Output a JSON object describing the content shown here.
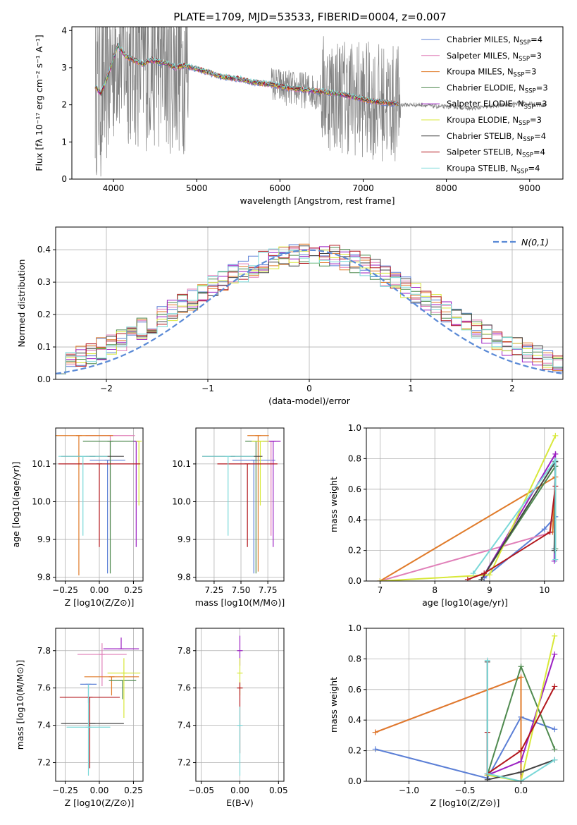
{
  "title": "PLATE=1709, MJD=53533, FIBERID=0004, z=0.007",
  "colors": {
    "Chabrier MILES": "#5b7fd6",
    "Salpeter MILES": "#e07fb8",
    "Kroupa MILES": "#e07b2a",
    "Chabrier ELODIE": "#4f8a4f",
    "Salpeter ELODIE": "#9b1fc2",
    "Kroupa ELODIE": "#d8e83a",
    "Chabrier STELIB": "#444444",
    "Salpeter STELIB": "#b3171d",
    "Kroupa STELIB": "#7ad8d8",
    "data": "#808080",
    "normal": "#5b8ad6"
  },
  "chart_data": [
    {
      "id": "spectrum",
      "type": "line",
      "xlabel": "wavelength [Angstrom, rest frame]",
      "ylabel": "Flux [fλ 10⁻¹⁷ erg cm⁻² s⁻¹ A⁻¹]",
      "xlim": [
        3500,
        9400
      ],
      "ylim": [
        0,
        4.1
      ],
      "xticks": [
        4000,
        5000,
        6000,
        7000,
        8000,
        9000
      ],
      "yticks": [
        0,
        1,
        2,
        3,
        4
      ],
      "legend_position": "top-right",
      "legend": [
        {
          "name": "Chabrier MILES",
          "nssp": "4"
        },
        {
          "name": "Salpeter MILES",
          "nssp": "3"
        },
        {
          "name": "Kroupa MILES",
          "nssp": "3"
        },
        {
          "name": "Chabrier ELODIE",
          "nssp": "3"
        },
        {
          "name": "Salpeter ELODIE",
          "nssp": "3"
        },
        {
          "name": "Kroupa ELODIE",
          "nssp": "3"
        },
        {
          "name": "Chabrier STELIB",
          "nssp": "4"
        },
        {
          "name": "Salpeter STELIB",
          "nssp": "4"
        },
        {
          "name": "Kroupa STELIB",
          "nssp": "4"
        }
      ],
      "nssp_prefix": "N",
      "nssp_sub": "SSP",
      "continuum": {
        "wavelength": [
          3780,
          3850,
          3950,
          4050,
          4150,
          4250,
          4350,
          4450,
          4550,
          4650,
          4750,
          4850,
          4950,
          5100,
          5300,
          5500,
          5700,
          5900,
          6100,
          6300,
          6500,
          6700,
          6900,
          7100,
          7300,
          7500,
          7700,
          7900,
          8100,
          8300,
          8500,
          8700,
          8900,
          9100
        ],
        "flux": [
          2.5,
          2.3,
          2.9,
          3.6,
          3.3,
          3.2,
          3.1,
          3.2,
          3.15,
          3.1,
          3.0,
          3.05,
          3.0,
          2.9,
          2.75,
          2.7,
          2.6,
          2.55,
          2.45,
          2.4,
          2.35,
          2.3,
          2.2,
          2.1,
          2.05,
          2.0,
          2.0,
          1.95,
          1.95,
          1.9,
          1.95,
          2.0,
          2.05,
          2.0
        ]
      },
      "model_range": [
        3780,
        7420
      ],
      "data_range": [
        3780,
        9200
      ]
    },
    {
      "id": "residuals",
      "type": "histogram",
      "xlabel": "(data-model)/error",
      "ylabel": "Normed distribution",
      "xlim": [
        -2.5,
        2.5
      ],
      "ylim": [
        0,
        0.47
      ],
      "xticks": [
        -2,
        -1,
        0,
        1,
        2
      ],
      "yticks": [
        0.0,
        0.1,
        0.2,
        0.3,
        0.4
      ],
      "legend": "N(0,1)",
      "legend_position": "top-right",
      "bin_width": 0.1,
      "base_shape": "gaussian"
    },
    {
      "id": "age-vs-Z",
      "type": "errorbar",
      "xlabel": "Z [log10(Z/Z⊙)]",
      "ylabel": "age  [log10(age/yr)]",
      "xlim": [
        -0.32,
        0.32
      ],
      "ylim": [
        9.79,
        10.195
      ],
      "xticks": [
        -0.25,
        0.0,
        0.25
      ],
      "yticks": [
        9.8,
        9.9,
        10.0,
        10.1
      ],
      "points": [
        {
          "series": "Chabrier MILES",
          "x": 0.06,
          "xerr": 0.13,
          "y": 10.11,
          "yerr": [
            0.3,
            0.0
          ]
        },
        {
          "series": "Salpeter MILES",
          "x": 0.08,
          "xerr": 0.18,
          "y": 10.175,
          "yerr": [
            0.25,
            0.0
          ]
        },
        {
          "series": "Kroupa MILES",
          "x": -0.15,
          "xerr": 0.25,
          "y": 10.175,
          "yerr": [
            0.37,
            0.0
          ]
        },
        {
          "series": "Chabrier ELODIE",
          "x": 0.08,
          "xerr": 0.2,
          "y": 10.16,
          "yerr": [
            0.35,
            0.0
          ]
        },
        {
          "series": "Salpeter ELODIE",
          "x": 0.27,
          "xerr": 0.0,
          "y": 10.16,
          "yerr": [
            0.28,
            0.0
          ]
        },
        {
          "series": "Kroupa ELODIE",
          "x": 0.29,
          "xerr": 0.0,
          "y": 10.16,
          "yerr": [
            0.17,
            0.0
          ]
        },
        {
          "series": "Chabrier STELIB",
          "x": -0.05,
          "xerr": 0.23,
          "y": 10.12,
          "yerr": [
            0.0,
            0.0
          ]
        },
        {
          "series": "Salpeter STELIB",
          "x": 0.0,
          "xerr": 0.3,
          "y": 10.1,
          "yerr": [
            0.22,
            0.0
          ]
        },
        {
          "series": "Kroupa STELIB",
          "x": -0.12,
          "xerr": 0.18,
          "y": 10.12,
          "yerr": [
            0.21,
            0.0
          ]
        }
      ]
    },
    {
      "id": "age-vs-mass",
      "type": "errorbar",
      "xlabel": "mass [log10(M/M⊙)]",
      "ylabel": "",
      "xlim": [
        7.08,
        7.9
      ],
      "ylim": [
        9.79,
        10.195
      ],
      "xticks": [
        7.25,
        7.5,
        7.75
      ],
      "yticks": [
        9.8,
        9.9,
        10.0,
        10.1
      ],
      "points": [
        {
          "series": "Chabrier MILES",
          "x": 7.62,
          "xerr": 0.2,
          "y": 10.11,
          "yerr": [
            0.3,
            0.0
          ]
        },
        {
          "series": "Salpeter MILES",
          "x": 7.78,
          "xerr": 0.08,
          "y": 10.16,
          "yerr": [
            0.25,
            0.0
          ]
        },
        {
          "series": "Kroupa MILES",
          "x": 7.66,
          "xerr": 0.1,
          "y": 10.175,
          "yerr": [
            0.36,
            0.0
          ]
        },
        {
          "series": "Chabrier ELODIE",
          "x": 7.64,
          "xerr": 0.1,
          "y": 10.16,
          "yerr": [
            0.35,
            0.0
          ]
        },
        {
          "series": "Salpeter ELODIE",
          "x": 7.8,
          "xerr": 0.07,
          "y": 10.16,
          "yerr": [
            0.28,
            0.0
          ]
        },
        {
          "series": "Kroupa ELODIE",
          "x": 7.68,
          "xerr": 0.08,
          "y": 10.16,
          "yerr": [
            0.17,
            0.0
          ]
        },
        {
          "series": "Chabrier STELIB",
          "x": 7.42,
          "xerr": 0.28,
          "y": 10.12,
          "yerr": [
            0.0,
            0.0
          ]
        },
        {
          "series": "Salpeter STELIB",
          "x": 7.56,
          "xerr": 0.28,
          "y": 10.1,
          "yerr": [
            0.22,
            0.0
          ]
        },
        {
          "series": "Kroupa STELIB",
          "x": 7.38,
          "xerr": 0.24,
          "y": 10.12,
          "yerr": [
            0.21,
            0.0
          ]
        }
      ]
    },
    {
      "id": "weight-vs-age",
      "type": "line",
      "xlabel": "age  [log10(age/yr)]",
      "ylabel": "mass weight",
      "xlim": [
        6.75,
        10.35
      ],
      "ylim": [
        0,
        1
      ],
      "xticks": [
        7,
        8,
        9,
        10
      ],
      "yticks": [
        0.0,
        0.2,
        0.4,
        0.6,
        0.8,
        1.0
      ],
      "series": [
        {
          "name": "Chabrier MILES",
          "x": [
            8.9,
            10.0,
            10.2,
            10.18
          ],
          "y": [
            0.02,
            0.34,
            0.42,
            0.21
          ]
        },
        {
          "name": "Salpeter MILES",
          "x": [
            7.0,
            10.15,
            10.2
          ],
          "y": [
            0.0,
            0.32,
            0.68
          ]
        },
        {
          "name": "Kroupa MILES",
          "x": [
            7.0,
            10.2,
            10.15
          ],
          "y": [
            0.0,
            0.68,
            0.32
          ]
        },
        {
          "name": "Chabrier ELODIE",
          "x": [
            8.9,
            10.2,
            10.2
          ],
          "y": [
            0.04,
            0.75,
            0.21
          ]
        },
        {
          "name": "Salpeter ELODIE",
          "x": [
            8.9,
            10.2,
            10.18
          ],
          "y": [
            0.04,
            0.83,
            0.13
          ]
        },
        {
          "name": "Kroupa ELODIE",
          "x": [
            7.0,
            9.0,
            10.2
          ],
          "y": [
            0.0,
            0.04,
            0.95
          ]
        },
        {
          "name": "Chabrier STELIB",
          "x": [
            8.85,
            10.2,
            10.18
          ],
          "y": [
            0.01,
            0.78,
            0.2
          ]
        },
        {
          "name": "Salpeter STELIB",
          "x": [
            8.6,
            8.9,
            10.1,
            10.2
          ],
          "y": [
            0.01,
            0.05,
            0.32,
            0.62
          ]
        },
        {
          "name": "Kroupa STELIB",
          "x": [
            8.7,
            10.2,
            10.2
          ],
          "y": [
            0.05,
            0.79,
            0.14
          ]
        }
      ]
    },
    {
      "id": "mass-vs-Z",
      "type": "errorbar",
      "xlabel": "Z [log10(Z/Z⊙)]",
      "ylabel": "mass [log10(M/M⊙)]",
      "xlim": [
        -0.32,
        0.32
      ],
      "ylim": [
        7.1,
        7.92
      ],
      "xticks": [
        -0.25,
        0.0,
        0.25
      ],
      "yticks": [
        7.2,
        7.4,
        7.6,
        7.8
      ],
      "points": [
        {
          "series": "Chabrier MILES",
          "x": -0.08,
          "xerr": 0.06,
          "y": 7.62,
          "yerr": [
            0.1,
            0.0
          ]
        },
        {
          "series": "Salpeter MILES",
          "x": 0.02,
          "xerr": 0.18,
          "y": 7.78,
          "yerr": [
            0.17,
            0.06
          ]
        },
        {
          "series": "Kroupa MILES",
          "x": 0.09,
          "xerr": 0.2,
          "y": 7.66,
          "yerr": [
            0.1,
            0.0
          ]
        },
        {
          "series": "Chabrier ELODIE",
          "x": 0.17,
          "xerr": 0.1,
          "y": 7.64,
          "yerr": [
            0.1,
            0.0
          ]
        },
        {
          "series": "Salpeter ELODIE",
          "x": 0.16,
          "xerr": 0.13,
          "y": 7.81,
          "yerr": [
            0.0,
            0.06
          ]
        },
        {
          "series": "Kroupa ELODIE",
          "x": 0.18,
          "xerr": 0.12,
          "y": 7.68,
          "yerr": [
            0.24,
            0.08
          ]
        },
        {
          "series": "Chabrier STELIB",
          "x": -0.05,
          "xerr": 0.23,
          "y": 7.41,
          "yerr": [
            0.0,
            0.0
          ]
        },
        {
          "series": "Salpeter STELIB",
          "x": -0.07,
          "xerr": 0.22,
          "y": 7.55,
          "yerr": [
            0.38,
            0.0
          ]
        },
        {
          "series": "Kroupa STELIB",
          "x": -0.08,
          "xerr": 0.16,
          "y": 7.39,
          "yerr": [
            0.26,
            0.23
          ]
        }
      ]
    },
    {
      "id": "mass-vs-ebv",
      "type": "errorbar",
      "xlabel": "E(B-V)",
      "ylabel": "",
      "xlim": [
        -0.057,
        0.057
      ],
      "ylim": [
        7.1,
        7.92
      ],
      "xticks": [
        -0.05,
        0.0,
        0.05
      ],
      "yticks": [
        7.2,
        7.4,
        7.6,
        7.8
      ],
      "points": [
        {
          "series": "Salpeter ELODIE",
          "x": 0.0,
          "xerr": 0.0,
          "y": 7.8,
          "yerr": [
            0.08,
            0.08
          ]
        },
        {
          "series": "Kroupa ELODIE",
          "x": 0.0,
          "xerr": 0.0,
          "y": 7.68,
          "yerr": [
            0.12,
            0.08
          ]
        },
        {
          "series": "Salpeter STELIB",
          "x": 0.0,
          "xerr": 0.0,
          "y": 7.6,
          "yerr": [
            0.35,
            0.03
          ]
        },
        {
          "series": "Kroupa STELIB",
          "x": 0.0,
          "xerr": 0.0,
          "y": 7.4,
          "yerr": [
            0.27,
            0.1
          ]
        }
      ]
    },
    {
      "id": "weight-vs-Z",
      "type": "line",
      "xlabel": "Z [log10(Z/Z⊙)]",
      "ylabel": "mass weight",
      "xlim": [
        -1.38,
        0.38
      ],
      "ylim": [
        0,
        1
      ],
      "xticks": [
        -1.0,
        -0.5,
        0.0
      ],
      "yticks": [
        0.0,
        0.2,
        0.4,
        0.6,
        0.8,
        1.0
      ],
      "series": [
        {
          "name": "Chabrier MILES",
          "x": [
            -1.3,
            -0.3,
            0.0,
            0.3
          ],
          "y": [
            0.21,
            0.02,
            0.42,
            0.34
          ]
        },
        {
          "name": "Salpeter MILES",
          "x": [
            -1.3,
            0.0,
            0.0
          ],
          "y": [
            0.32,
            0.68,
            0.0
          ]
        },
        {
          "name": "Kroupa MILES",
          "x": [
            -1.3,
            0.0,
            0.0
          ],
          "y": [
            0.32,
            0.68,
            0.0
          ]
        },
        {
          "name": "Chabrier ELODIE",
          "x": [
            -0.3,
            0.0,
            0.3
          ],
          "y": [
            0.04,
            0.75,
            0.21
          ]
        },
        {
          "name": "Salpeter ELODIE",
          "x": [
            -0.3,
            0.0,
            0.3
          ],
          "y": [
            0.04,
            0.13,
            0.83
          ]
        },
        {
          "name": "Kroupa ELODIE",
          "x": [
            -0.3,
            0.0,
            0.3
          ],
          "y": [
            0.04,
            0.0,
            0.95
          ]
        },
        {
          "name": "Chabrier STELIB",
          "x": [
            -0.3,
            -0.3,
            0.0,
            0.3
          ],
          "y": [
            0.78,
            0.01,
            0.06,
            0.14
          ]
        },
        {
          "name": "Salpeter STELIB",
          "x": [
            -0.3,
            -0.3,
            0.0,
            0.3
          ],
          "y": [
            0.32,
            0.05,
            0.2,
            0.62
          ]
        },
        {
          "name": "Kroupa STELIB",
          "x": [
            -0.3,
            -0.3,
            0.0,
            0.3
          ],
          "y": [
            0.79,
            0.05,
            0.0,
            0.14
          ]
        }
      ]
    }
  ]
}
